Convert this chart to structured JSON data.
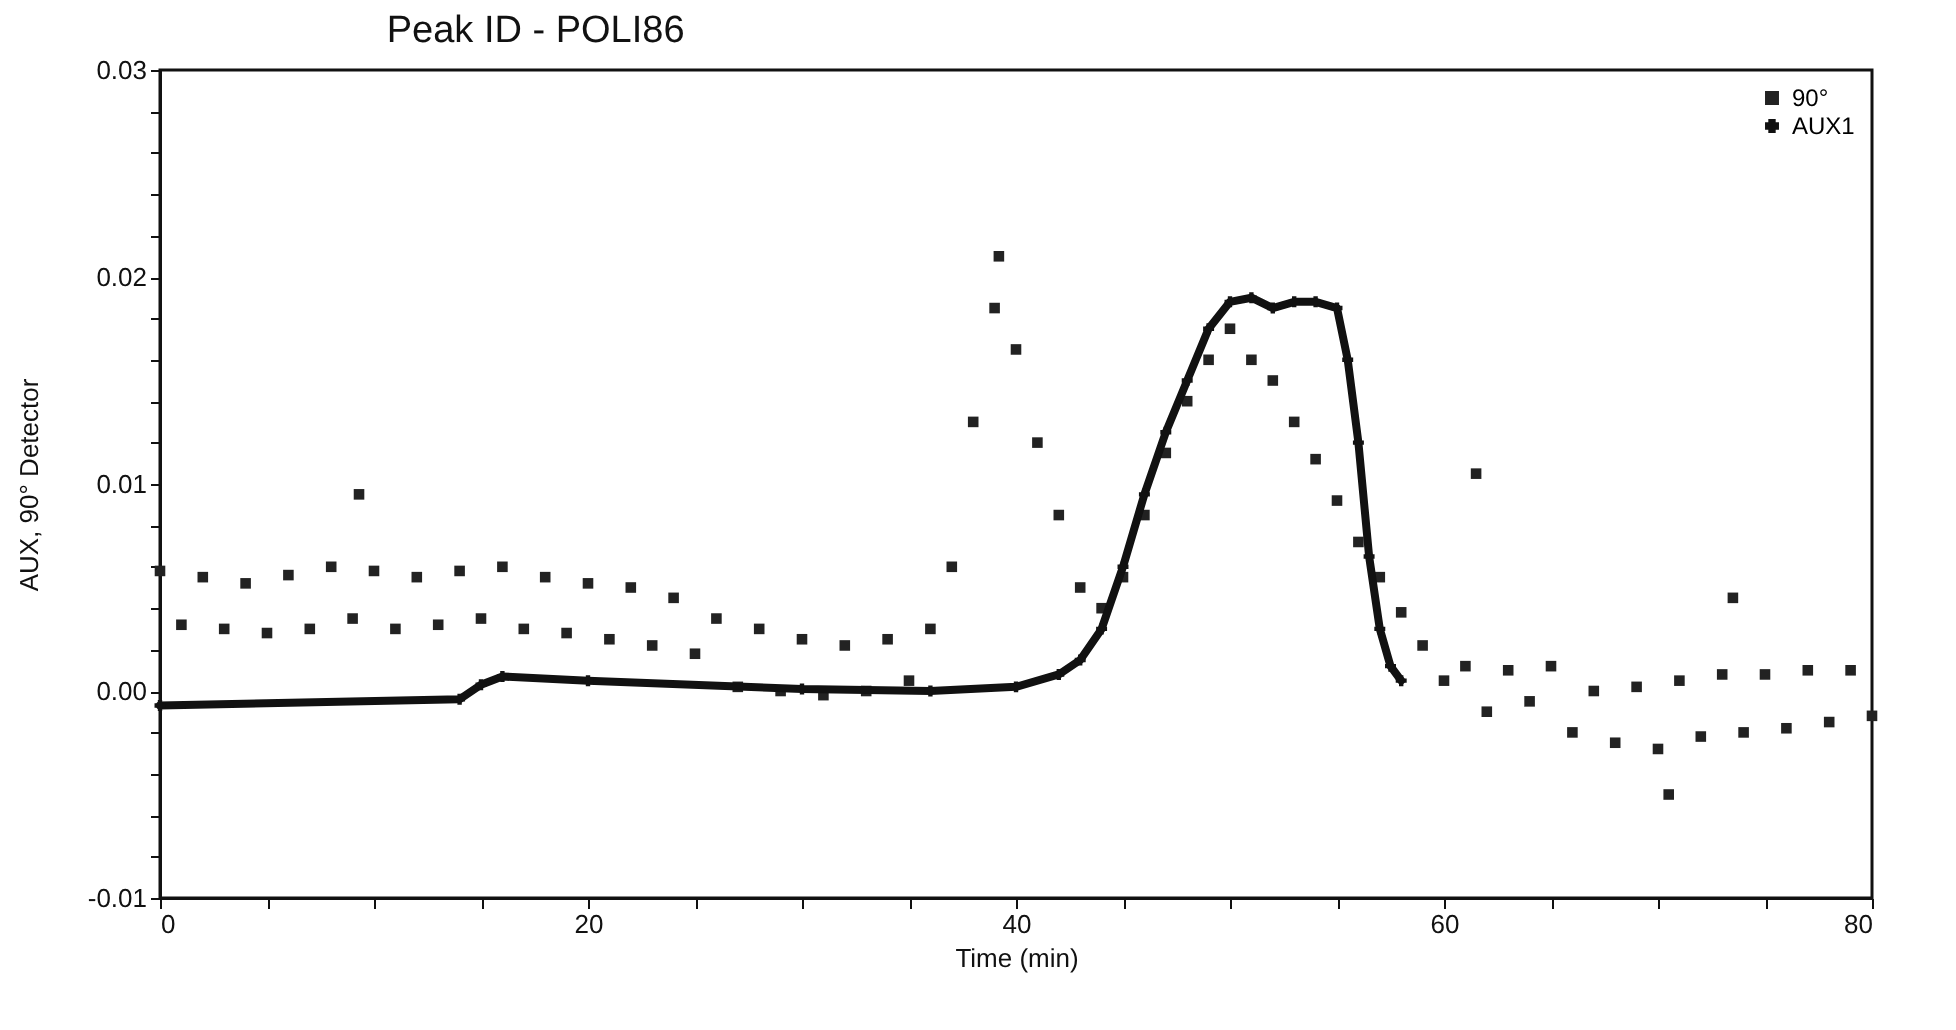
{
  "chart_data": {
    "type": "scatter",
    "title": "Peak ID - POLI86",
    "xlabel": "Time (min)",
    "ylabel": "AUX, 90° Detector",
    "xlim": [
      0,
      80
    ],
    "xticks": [
      0,
      {
        "value": 5,
        "label": null
      },
      {
        "value": 10,
        "label": null
      },
      {
        "value": 15,
        "label": null
      },
      20,
      {
        "value": 25,
        "label": null
      },
      {
        "value": 30,
        "label": null
      },
      {
        "value": 35,
        "label": null
      },
      40,
      {
        "value": 45,
        "label": null
      },
      {
        "value": 50,
        "label": null
      },
      {
        "value": 55,
        "label": null
      },
      60,
      {
        "value": 65,
        "label": null
      },
      {
        "value": 70,
        "label": null
      },
      {
        "value": 75,
        "label": null
      },
      80
    ],
    "ylim": [
      -0.01,
      0.03
    ],
    "yticks": [
      -0.01,
      {
        "value": -0.008,
        "label": null
      },
      {
        "value": -0.006,
        "label": null
      },
      {
        "value": -0.004,
        "label": null
      },
      {
        "value": -0.002,
        "label": null
      },
      {
        "value": 0,
        "label": "0.00"
      },
      {
        "value": 0.002,
        "label": null
      },
      {
        "value": 0.004,
        "label": null
      },
      {
        "value": 0.006,
        "label": null
      },
      {
        "value": 0.008,
        "label": null
      },
      0.01,
      {
        "value": 0.012,
        "label": null
      },
      {
        "value": 0.014,
        "label": null
      },
      {
        "value": 0.016,
        "label": null
      },
      {
        "value": 0.018,
        "label": null
      },
      0.02,
      {
        "value": 0.022,
        "label": null
      },
      {
        "value": 0.024,
        "label": null
      },
      {
        "value": 0.026,
        "label": null
      },
      {
        "value": 0.028,
        "label": null
      },
      0.03
    ],
    "legend": "top right",
    "grid": false,
    "series": [
      {
        "name": "90°",
        "marker": "square",
        "color": "#222222",
        "x": [
          0,
          1,
          2,
          3,
          4,
          5,
          6,
          7,
          8,
          9,
          9.3,
          10,
          11,
          12,
          13,
          14,
          15,
          16,
          17,
          18,
          19,
          20,
          21,
          22,
          23,
          24,
          25,
          26,
          27,
          28,
          29,
          30,
          31,
          32,
          33,
          34,
          35,
          36,
          37,
          38,
          39,
          39.2,
          40,
          41,
          42,
          43,
          44,
          45,
          46,
          47,
          48,
          49,
          50,
          51,
          52,
          53,
          54,
          55,
          56,
          57,
          58,
          59,
          60,
          61,
          61.5,
          62,
          63,
          64,
          65,
          66,
          67,
          68,
          69,
          70,
          70.5,
          71,
          72,
          73,
          73.5,
          74,
          75,
          76,
          77,
          78,
          79,
          80
        ],
        "values": [
          0.0058,
          0.0032,
          0.0055,
          0.003,
          0.0052,
          0.0028,
          0.0056,
          0.003,
          0.006,
          0.0035,
          0.0095,
          0.0058,
          0.003,
          0.0055,
          0.0032,
          0.0058,
          0.0035,
          0.006,
          0.003,
          0.0055,
          0.0028,
          0.0052,
          0.0025,
          0.005,
          0.0022,
          0.0045,
          0.0018,
          0.0035,
          0.0002,
          0.003,
          0,
          0.0025,
          -0.0002,
          0.0022,
          0,
          0.0025,
          0.0005,
          0.003,
          0.006,
          0.013,
          0.0185,
          0.021,
          0.0165,
          0.012,
          0.0085,
          0.005,
          0.004,
          0.0055,
          0.0085,
          0.0115,
          0.014,
          0.016,
          0.0175,
          0.016,
          0.015,
          0.013,
          0.0112,
          0.0092,
          0.0072,
          0.0055,
          0.0038,
          0.0022,
          0.0005,
          0.0012,
          0.0105,
          -0.001,
          0.001,
          -0.0005,
          0.0012,
          -0.002,
          0,
          -0.0025,
          0.0002,
          -0.0028,
          -0.005,
          0.0005,
          -0.0022,
          0.0008,
          0.0045,
          -0.002,
          0.0008,
          -0.0018,
          0.001,
          -0.0015,
          0.001,
          -0.0012
        ]
      },
      {
        "name": "AUX1",
        "type": "line",
        "marker": "cross",
        "color": "#111111",
        "x": [
          0,
          14,
          15,
          16,
          20,
          30,
          36,
          40,
          42,
          43,
          44,
          45,
          46,
          47,
          48,
          49,
          50,
          51,
          52,
          53,
          54,
          55,
          55.5,
          56,
          56.5,
          57,
          57.5,
          58
        ],
        "values": [
          -0.0007,
          -0.0004,
          0.0003,
          0.0007,
          0.0005,
          0.0001,
          0,
          0.0002,
          0.0008,
          0.0015,
          0.003,
          0.006,
          0.0095,
          0.0125,
          0.015,
          0.0175,
          0.0188,
          0.019,
          0.0185,
          0.0188,
          0.0188,
          0.0185,
          0.016,
          0.012,
          0.0065,
          0.003,
          0.0012,
          0.0005
        ]
      }
    ]
  }
}
